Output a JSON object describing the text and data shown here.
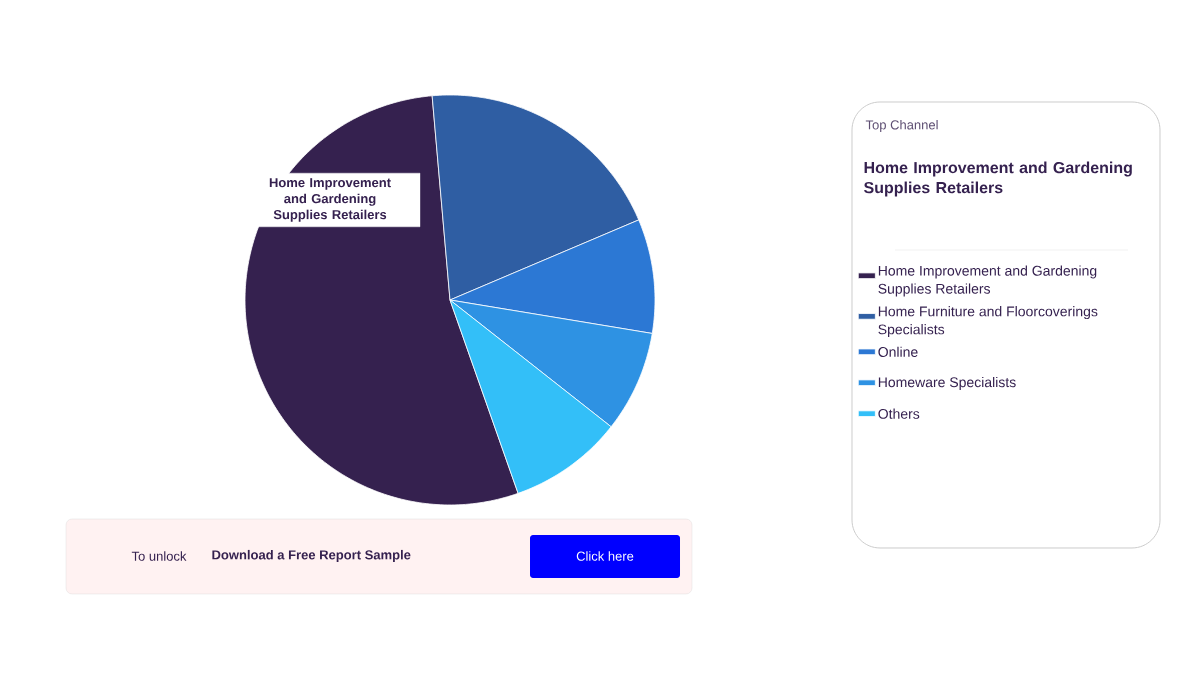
{
  "chart_data": {
    "type": "pie",
    "categories": [
      "Home Improvement and Gardening Supplies Retailers",
      "Home Furniture and Floorcoverings Specialists",
      "Online",
      "Homeware Specialists",
      "Others"
    ],
    "values": [
      54,
      20,
      9,
      8,
      9
    ],
    "colors": [
      "#35214f",
      "#2f5ea3",
      "#2c78d4",
      "#2e92e3",
      "#33bff8"
    ],
    "legend": "right",
    "legend_title": "Top Channel",
    "annotations": [
      "Home Improvement and Gardening Supplies Retailers",
      "Home Improvement and Gardening Supplies Retailers",
      "To unlock",
      "Download a Free Report Sample",
      "Click here"
    ]
  }
}
